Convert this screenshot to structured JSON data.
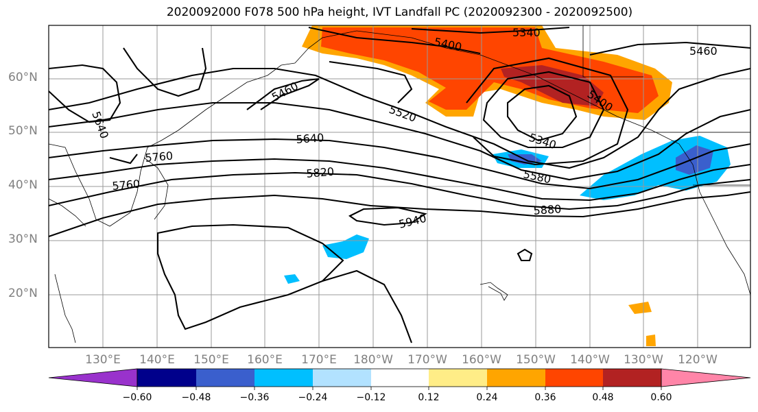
{
  "title": "2020092000 F078 500 hPa height, IVT Landfall PC (2020092300 - 2020092500)",
  "lat_labels": [
    "60°N",
    "50°N",
    "40°N",
    "30°N",
    "20°N"
  ],
  "lon_labels": [
    "130°E",
    "140°E",
    "150°E",
    "160°E",
    "170°E",
    "180°W",
    "170°W",
    "160°W",
    "150°W",
    "140°W",
    "130°W",
    "120°W"
  ],
  "contour_labels": [
    "5340",
    "5400",
    "5460",
    "5460",
    "5400",
    "5520",
    "5640",
    "5640",
    "5760",
    "5760",
    "5820",
    "5340",
    "5580",
    "5880",
    "5940"
  ],
  "colorbar": {
    "colors": [
      "#9932cc",
      "#00008b",
      "#3a5fcd",
      "#00bfff",
      "#b2e2ff",
      "#ffffff",
      "#ffed87",
      "#ffa500",
      "#ff4500",
      "#b22222",
      "#ff85a8"
    ],
    "tick_labels": [
      "−0.60",
      "−0.48",
      "−0.36",
      "−0.24",
      "−0.12",
      "0.12",
      "0.24",
      "0.36",
      "0.48",
      "0.60"
    ]
  }
}
